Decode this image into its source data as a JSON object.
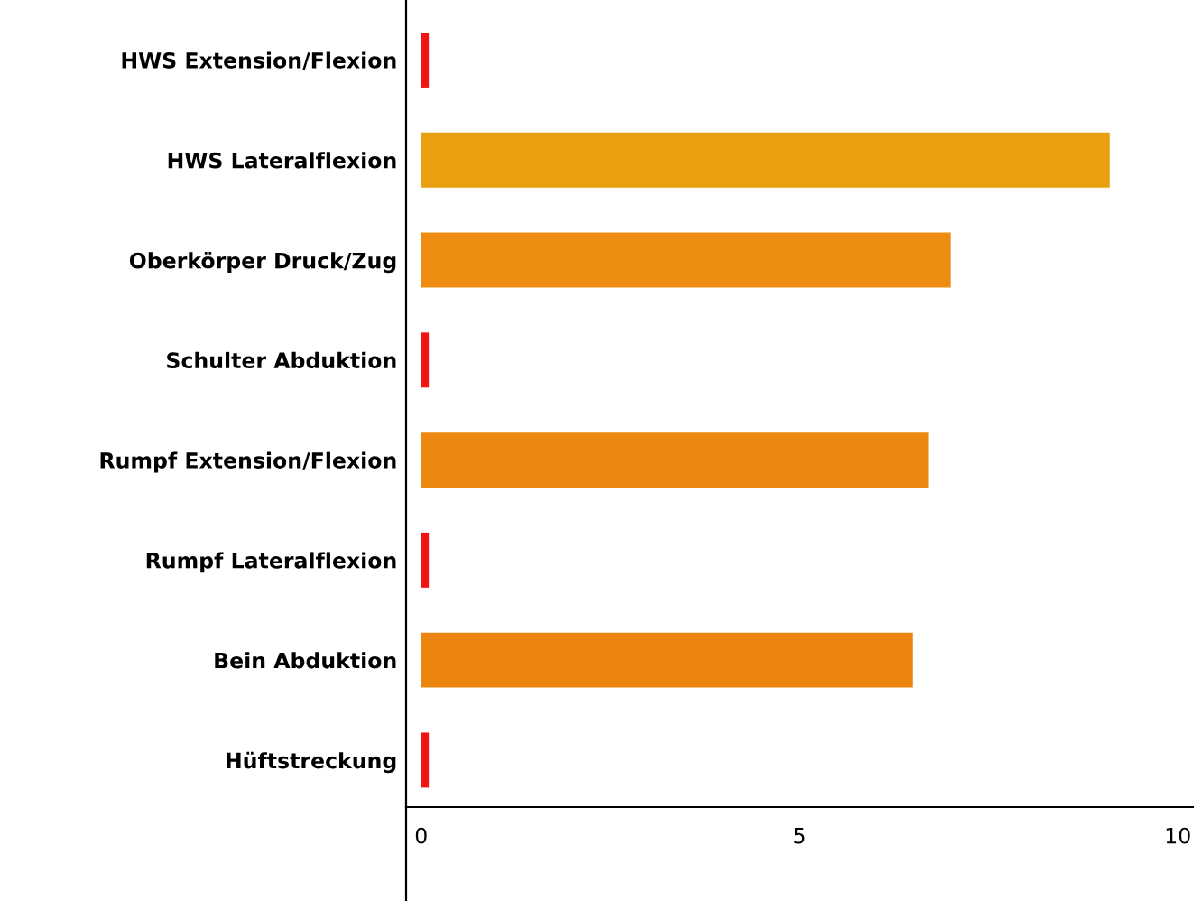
{
  "chart_data": {
    "type": "bar",
    "orientation": "horizontal",
    "categories": [
      "HWS Extension/Flexion",
      "HWS Lateralflexion",
      "Oberkörper Druck/Zug",
      "Schulter Abduktion",
      "Rumpf Extension/Flexion",
      "Rumpf Lateralflexion",
      "Bein Abduktion",
      "Hüftstreckung"
    ],
    "values": [
      0.1,
      9.1,
      7.0,
      0.1,
      6.7,
      0.1,
      6.5,
      0.1
    ],
    "colors": [
      "#f01414",
      "#e8a010",
      "#ec8c10",
      "#f01414",
      "#ec8810",
      "#f01414",
      "#ec8410",
      "#f01414"
    ],
    "xlim": [
      -0.2,
      10.2
    ],
    "xticks": [
      0,
      5,
      10
    ],
    "grid": false
  }
}
